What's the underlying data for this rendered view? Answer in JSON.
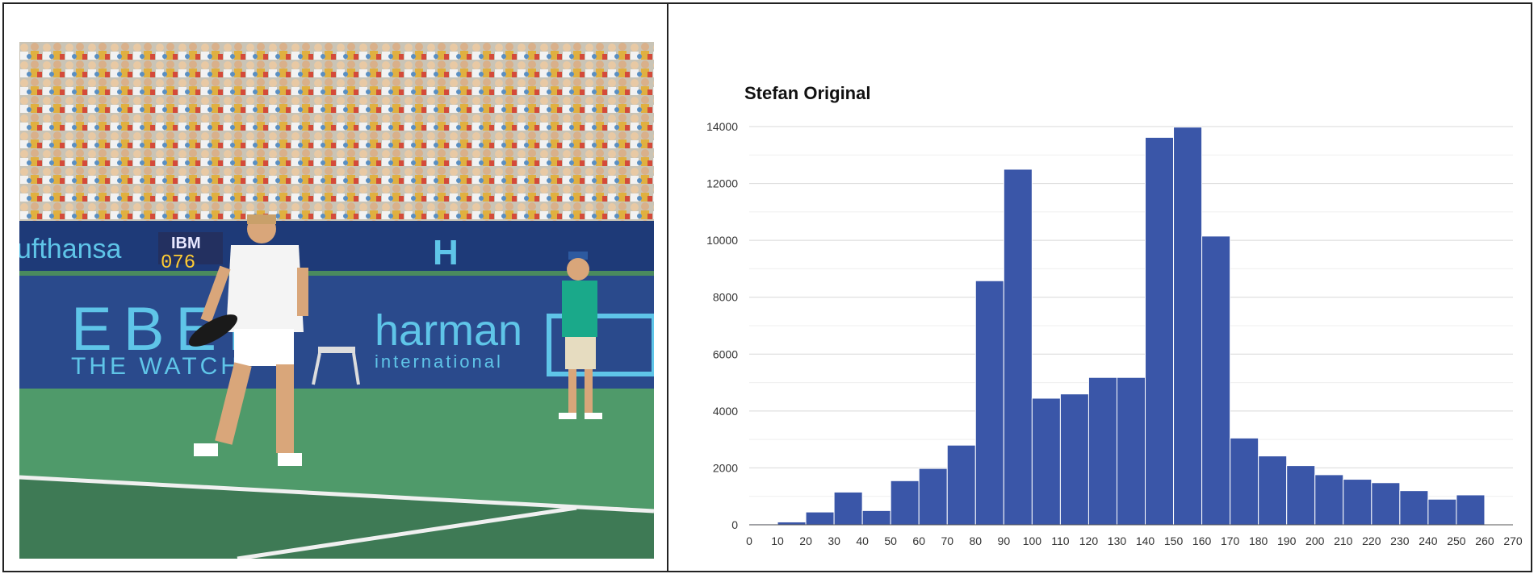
{
  "chart_data": {
    "type": "bar",
    "title": "Stefan Original",
    "xlabel": "",
    "ylabel": "",
    "xlim": [
      0,
      270
    ],
    "ylim": [
      0,
      14000
    ],
    "bin_width": 10,
    "x_ticks": [
      0,
      10,
      20,
      30,
      40,
      50,
      60,
      70,
      80,
      90,
      100,
      110,
      120,
      130,
      140,
      150,
      160,
      170,
      180,
      190,
      200,
      210,
      220,
      230,
      240,
      250,
      260,
      270
    ],
    "y_ticks": [
      0,
      2000,
      4000,
      6000,
      8000,
      10000,
      12000,
      14000
    ],
    "bins": [
      {
        "x": 0,
        "value": 30
      },
      {
        "x": 10,
        "value": 100
      },
      {
        "x": 20,
        "value": 450
      },
      {
        "x": 30,
        "value": 1150
      },
      {
        "x": 40,
        "value": 500
      },
      {
        "x": 50,
        "value": 1550
      },
      {
        "x": 60,
        "value": 1980
      },
      {
        "x": 70,
        "value": 2800
      },
      {
        "x": 80,
        "value": 8580
      },
      {
        "x": 90,
        "value": 12500
      },
      {
        "x": 100,
        "value": 4450
      },
      {
        "x": 110,
        "value": 4600
      },
      {
        "x": 120,
        "value": 5180
      },
      {
        "x": 130,
        "value": 5180
      },
      {
        "x": 140,
        "value": 13620
      },
      {
        "x": 150,
        "value": 13980
      },
      {
        "x": 160,
        "value": 10150
      },
      {
        "x": 170,
        "value": 3050
      },
      {
        "x": 180,
        "value": 2420
      },
      {
        "x": 190,
        "value": 2080
      },
      {
        "x": 200,
        "value": 1760
      },
      {
        "x": 210,
        "value": 1600
      },
      {
        "x": 220,
        "value": 1480
      },
      {
        "x": 230,
        "value": 1200
      },
      {
        "x": 240,
        "value": 900
      },
      {
        "x": 250,
        "value": 1050
      }
    ],
    "grid": true,
    "bar_color": "#3a56a8"
  },
  "photo": {
    "signage": {
      "sponsor_left": "ufthansa",
      "scoreboard_brand": "IBM",
      "scoreboard_digits": "076",
      "banner_main": "EBEL",
      "banner_sub": "THE WATCH",
      "sponsor_center": "harman",
      "sponsor_center_sub": "international",
      "sponsor_h": "H"
    }
  }
}
